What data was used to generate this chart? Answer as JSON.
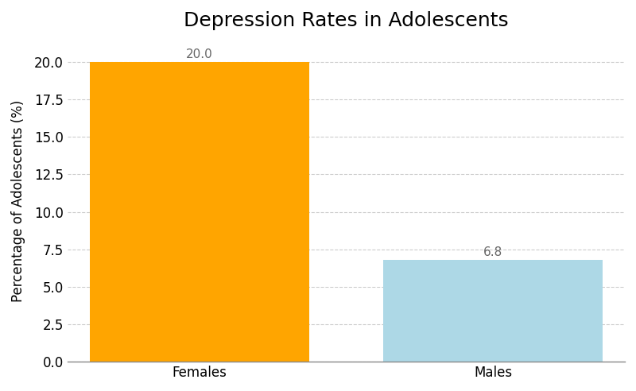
{
  "title": "Depression Rates in Adolescents",
  "categories": [
    "Females",
    "Males"
  ],
  "values": [
    20.0,
    6.8
  ],
  "bar_colors": [
    "#FFA500",
    "#ADD8E6"
  ],
  "ylabel": "Percentage of Adolescents (%)",
  "ylim": [
    0,
    21.5
  ],
  "yticks": [
    0.0,
    2.5,
    5.0,
    7.5,
    10.0,
    12.5,
    15.0,
    17.5,
    20.0
  ],
  "title_fontsize": 18,
  "label_fontsize": 12,
  "tick_fontsize": 12,
  "value_fontsize": 11,
  "bar_width": 0.75,
  "background_color": "#ffffff",
  "grid_color": "#cccccc",
  "spine_color": "#888888"
}
